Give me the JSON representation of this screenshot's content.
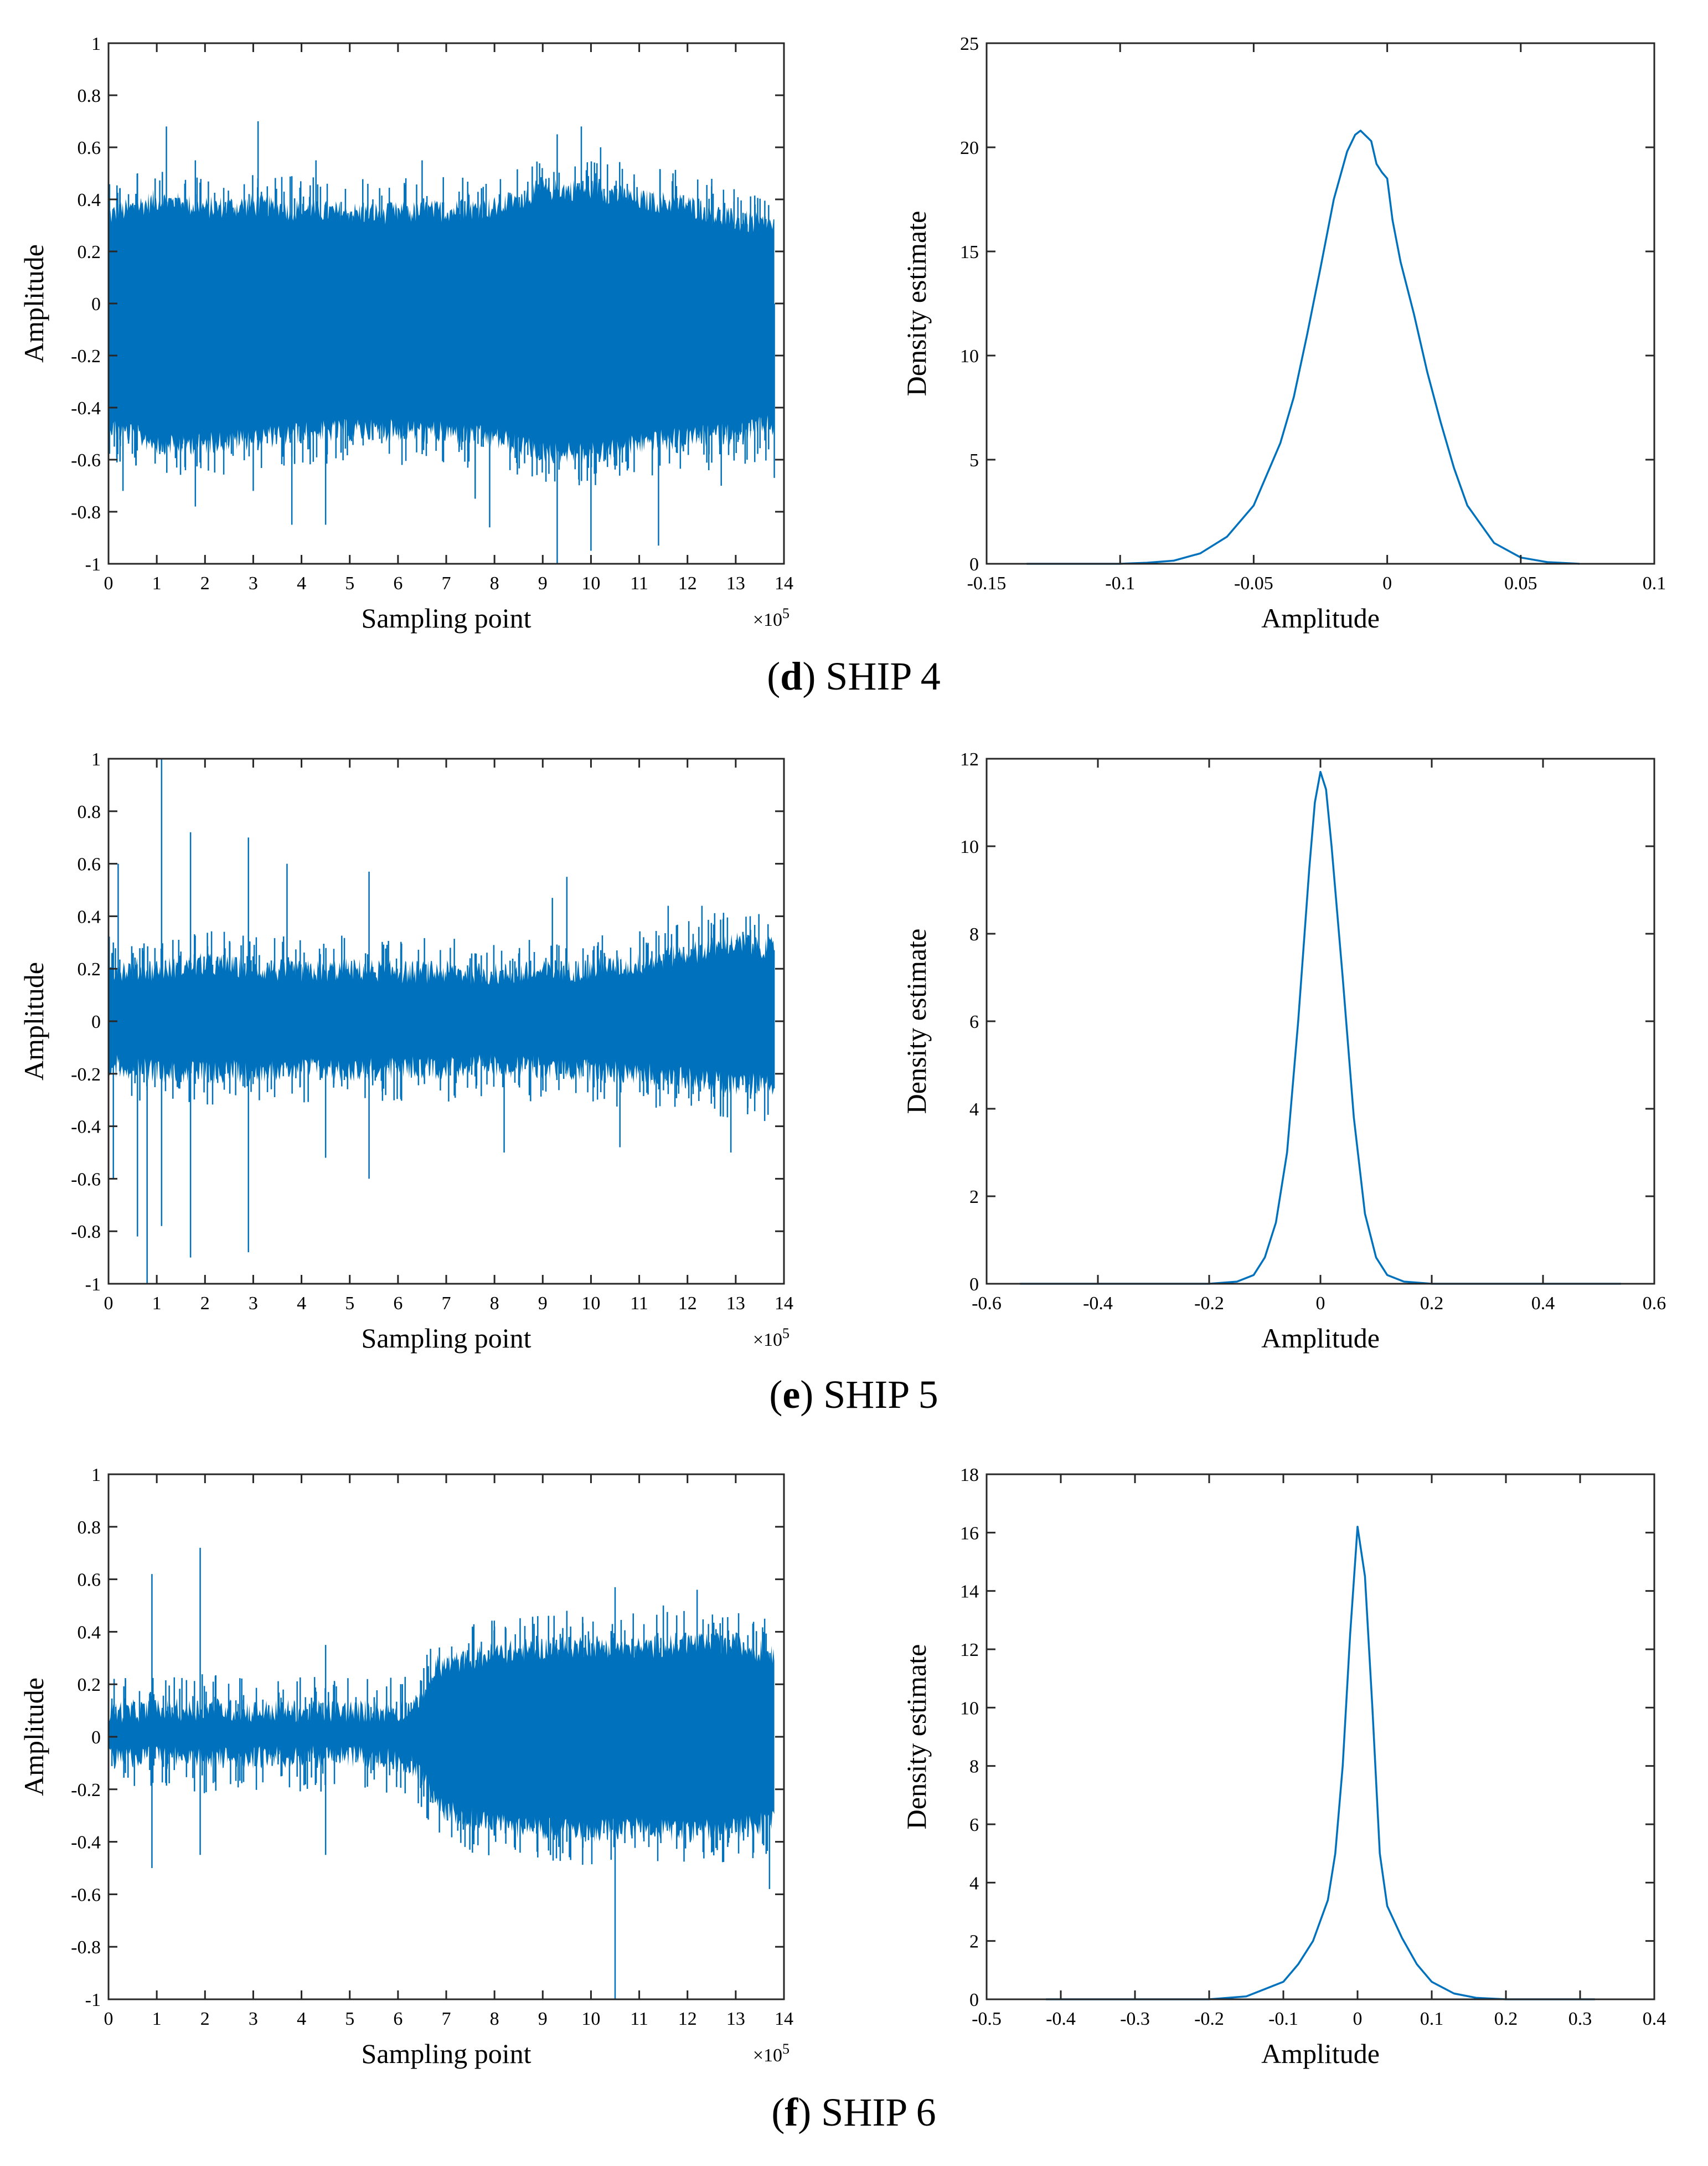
{
  "colors": {
    "series": "#0072bd",
    "axis": "#262626",
    "background": "#ffffff"
  },
  "panels": [
    {
      "caption_letter": "d",
      "caption_text": " SHIP 4",
      "time_plot": {
        "type": "line",
        "xlabel": "Sampling point",
        "ylabel": "Amplitude",
        "x_exponent_label": "×10",
        "x_exponent_power": "5",
        "xlim": [
          0,
          14
        ],
        "ylim": [
          -1,
          1
        ],
        "xticks": [
          0,
          1,
          2,
          3,
          4,
          5,
          6,
          7,
          8,
          9,
          10,
          11,
          12,
          13,
          14
        ],
        "yticks": [
          -1,
          -0.8,
          -0.6,
          -0.4,
          -0.2,
          0,
          0.2,
          0.4,
          0.6,
          0.8,
          1
        ],
        "signal_length": 13.8,
        "envelope": {
          "x": [
            0,
            1,
            2,
            3,
            4,
            5,
            6,
            7,
            8,
            9,
            10,
            11,
            12,
            13,
            13.8
          ],
          "upper": [
            0.32,
            0.38,
            0.35,
            0.36,
            0.34,
            0.33,
            0.33,
            0.34,
            0.35,
            0.42,
            0.42,
            0.38,
            0.36,
            0.3,
            0.28
          ],
          "lower": [
            -0.45,
            -0.52,
            -0.52,
            -0.5,
            -0.48,
            -0.47,
            -0.47,
            -0.48,
            -0.5,
            -0.55,
            -0.56,
            -0.52,
            -0.5,
            -0.48,
            -0.45
          ]
        },
        "spikes_up": [
          [
            0.6,
            0.5
          ],
          [
            1.2,
            0.68
          ],
          [
            1.8,
            0.55
          ],
          [
            3.1,
            0.7
          ],
          [
            4.3,
            0.55
          ],
          [
            6.5,
            0.55
          ],
          [
            9.3,
            0.65
          ],
          [
            9.8,
            0.68
          ],
          [
            10.2,
            0.6
          ],
          [
            11.7,
            0.5
          ],
          [
            12.5,
            0.45
          ],
          [
            13.4,
            0.38
          ]
        ],
        "spikes_down": [
          [
            0.3,
            -0.72
          ],
          [
            1.8,
            -0.78
          ],
          [
            3.0,
            -0.72
          ],
          [
            3.8,
            -0.85
          ],
          [
            4.5,
            -0.85
          ],
          [
            7.6,
            -0.75
          ],
          [
            7.9,
            -0.86
          ],
          [
            9.3,
            -1.0
          ],
          [
            10.0,
            -0.95
          ],
          [
            11.4,
            -0.93
          ],
          [
            12.7,
            -0.7
          ],
          [
            13.8,
            -0.67
          ]
        ]
      },
      "density_plot": {
        "type": "line",
        "xlabel": "Amplitude",
        "ylabel": "Density estimate",
        "xlim": [
          -0.15,
          0.1
        ],
        "ylim": [
          0,
          25
        ],
        "xticks": [
          -0.15,
          -0.1,
          -0.05,
          0,
          0.05,
          0.1
        ],
        "xtick_labels": [
          "-0.15",
          "-0.1",
          "-0.05",
          "0",
          "0.05",
          "0.1"
        ],
        "yticks": [
          0,
          5,
          10,
          15,
          20,
          25
        ],
        "x": [
          -0.135,
          -0.1,
          -0.09,
          -0.08,
          -0.07,
          -0.06,
          -0.05,
          -0.04,
          -0.035,
          -0.03,
          -0.025,
          -0.02,
          -0.015,
          -0.012,
          -0.01,
          -0.006,
          -0.004,
          -0.002,
          0,
          0.002,
          0.005,
          0.01,
          0.015,
          0.02,
          0.025,
          0.03,
          0.04,
          0.05,
          0.06,
          0.072
        ],
        "y": [
          0,
          0,
          0.05,
          0.15,
          0.5,
          1.3,
          2.8,
          5.8,
          8.0,
          11.0,
          14.2,
          17.5,
          19.8,
          20.6,
          20.8,
          20.3,
          19.2,
          18.8,
          18.5,
          16.5,
          14.5,
          12.0,
          9.2,
          6.8,
          4.6,
          2.8,
          1.0,
          0.3,
          0.08,
          0
        ]
      }
    },
    {
      "caption_letter": "e",
      "caption_text": " SHIP 5",
      "time_plot": {
        "type": "line",
        "xlabel": "Sampling point",
        "ylabel": "Amplitude",
        "x_exponent_label": "×10",
        "x_exponent_power": "5",
        "xlim": [
          0,
          14
        ],
        "ylim": [
          -1,
          1
        ],
        "xticks": [
          0,
          1,
          2,
          3,
          4,
          5,
          6,
          7,
          8,
          9,
          10,
          11,
          12,
          13,
          14
        ],
        "yticks": [
          -1,
          -0.8,
          -0.6,
          -0.4,
          -0.2,
          0,
          0.2,
          0.4,
          0.6,
          0.8,
          1
        ],
        "signal_length": 13.8,
        "envelope": {
          "x": [
            0,
            1,
            2,
            3,
            4,
            5,
            6,
            7,
            8,
            9,
            10,
            11,
            12,
            13,
            13.8
          ],
          "upper": [
            0.18,
            0.18,
            0.2,
            0.18,
            0.17,
            0.18,
            0.17,
            0.17,
            0.16,
            0.17,
            0.18,
            0.2,
            0.24,
            0.28,
            0.26
          ],
          "lower": [
            -0.15,
            -0.17,
            -0.18,
            -0.17,
            -0.16,
            -0.17,
            -0.16,
            -0.16,
            -0.15,
            -0.16,
            -0.17,
            -0.18,
            -0.2,
            -0.22,
            -0.22
          ]
        },
        "spikes_up": [
          [
            0.2,
            0.6
          ],
          [
            0.1,
            0.3
          ],
          [
            1.1,
            1.0
          ],
          [
            1.7,
            0.72
          ],
          [
            2.9,
            0.7
          ],
          [
            3.7,
            0.6
          ],
          [
            5.4,
            0.57
          ],
          [
            9.2,
            0.47
          ],
          [
            9.5,
            0.55
          ],
          [
            11.6,
            0.44
          ],
          [
            12.3,
            0.44
          ],
          [
            13.3,
            0.4
          ]
        ],
        "spikes_down": [
          [
            0.1,
            -0.6
          ],
          [
            0.6,
            -0.82
          ],
          [
            0.8,
            -1.0
          ],
          [
            1.1,
            -0.78
          ],
          [
            1.7,
            -0.9
          ],
          [
            2.9,
            -0.88
          ],
          [
            4.5,
            -0.52
          ],
          [
            5.4,
            -0.6
          ],
          [
            8.2,
            -0.5
          ],
          [
            10.6,
            -0.48
          ],
          [
            12.9,
            -0.5
          ],
          [
            13.6,
            -0.38
          ]
        ]
      },
      "density_plot": {
        "type": "line",
        "xlabel": "Amplitude",
        "ylabel": "Density estimate",
        "xlim": [
          -0.6,
          0.6
        ],
        "ylim": [
          0,
          12
        ],
        "xticks": [
          -0.6,
          -0.4,
          -0.2,
          0,
          0.2,
          0.4,
          0.6
        ],
        "xtick_labels": [
          "-0.6",
          "-0.4",
          "-0.2",
          "0",
          "0.2",
          "0.4",
          "0.6"
        ],
        "yticks": [
          0,
          2,
          4,
          6,
          8,
          10,
          12
        ],
        "x": [
          -0.54,
          -0.2,
          -0.15,
          -0.12,
          -0.1,
          -0.08,
          -0.06,
          -0.04,
          -0.02,
          -0.01,
          0,
          0.01,
          0.02,
          0.04,
          0.06,
          0.08,
          0.1,
          0.12,
          0.15,
          0.2,
          0.54
        ],
        "y": [
          0,
          0,
          0.05,
          0.2,
          0.6,
          1.4,
          3.0,
          6.0,
          9.5,
          11.0,
          11.7,
          11.3,
          10.0,
          7.0,
          3.8,
          1.6,
          0.6,
          0.2,
          0.05,
          0,
          0
        ]
      }
    },
    {
      "caption_letter": "f",
      "caption_text": " SHIP 6",
      "time_plot": {
        "type": "line",
        "xlabel": "Sampling point",
        "ylabel": "Amplitude",
        "x_exponent_label": "×10",
        "x_exponent_power": "5",
        "xlim": [
          0,
          14
        ],
        "ylim": [
          -1,
          1
        ],
        "xticks": [
          0,
          1,
          2,
          3,
          4,
          5,
          6,
          7,
          8,
          9,
          10,
          11,
          12,
          13,
          14
        ],
        "yticks": [
          -1,
          -0.8,
          -0.6,
          -0.4,
          -0.2,
          0,
          0.2,
          0.4,
          0.6,
          0.8,
          1
        ],
        "signal_length": 13.8,
        "envelope": {
          "x": [
            0,
            1,
            2,
            3,
            4,
            5,
            6,
            6.4,
            6.8,
            8,
            9,
            10,
            11,
            12,
            13,
            13.8
          ],
          "upper": [
            0.08,
            0.08,
            0.09,
            0.08,
            0.08,
            0.08,
            0.08,
            0.1,
            0.25,
            0.3,
            0.32,
            0.33,
            0.32,
            0.34,
            0.33,
            0.3
          ],
          "lower": [
            -0.06,
            -0.06,
            -0.07,
            -0.06,
            -0.06,
            -0.06,
            -0.07,
            -0.1,
            -0.25,
            -0.32,
            -0.33,
            -0.34,
            -0.33,
            -0.34,
            -0.33,
            -0.3
          ]
        },
        "spikes_up": [
          [
            0.9,
            0.62
          ],
          [
            1.9,
            0.72
          ],
          [
            4.5,
            0.35
          ],
          [
            9.5,
            0.48
          ],
          [
            10.5,
            0.57
          ],
          [
            11.5,
            0.5
          ],
          [
            12.2,
            0.56
          ],
          [
            13.6,
            0.45
          ],
          [
            8.0,
            0.42
          ]
        ],
        "spikes_down": [
          [
            0.9,
            -0.5
          ],
          [
            1.9,
            -0.45
          ],
          [
            4.5,
            -0.45
          ],
          [
            7.3,
            -0.38
          ],
          [
            10.5,
            -1.0
          ],
          [
            11.2,
            -0.42
          ],
          [
            13.7,
            -0.58
          ],
          [
            9.5,
            -0.4
          ]
        ]
      },
      "density_plot": {
        "type": "line",
        "xlabel": "Amplitude",
        "ylabel": "Density estimate",
        "xlim": [
          -0.5,
          0.4
        ],
        "ylim": [
          0,
          18
        ],
        "xticks": [
          -0.5,
          -0.4,
          -0.3,
          -0.2,
          -0.1,
          0,
          0.1,
          0.2,
          0.3,
          0.4
        ],
        "xtick_labels": [
          "-0.5",
          "-0.4",
          "-0.3",
          "-0.2",
          "-0.1",
          "0",
          "0.1",
          "0.2",
          "0.3",
          "0.4"
        ],
        "yticks": [
          0,
          2,
          4,
          6,
          8,
          10,
          12,
          14,
          16,
          18
        ],
        "x": [
          -0.42,
          -0.2,
          -0.15,
          -0.1,
          -0.08,
          -0.06,
          -0.04,
          -0.03,
          -0.02,
          -0.01,
          0,
          0.01,
          0.02,
          0.03,
          0.04,
          0.06,
          0.08,
          0.1,
          0.13,
          0.16,
          0.2,
          0.32
        ],
        "y": [
          0,
          0,
          0.1,
          0.6,
          1.2,
          2.0,
          3.4,
          5.0,
          8.0,
          12.5,
          16.2,
          14.5,
          10.0,
          5.0,
          3.2,
          2.1,
          1.2,
          0.6,
          0.2,
          0.05,
          0,
          0
        ]
      }
    }
  ]
}
